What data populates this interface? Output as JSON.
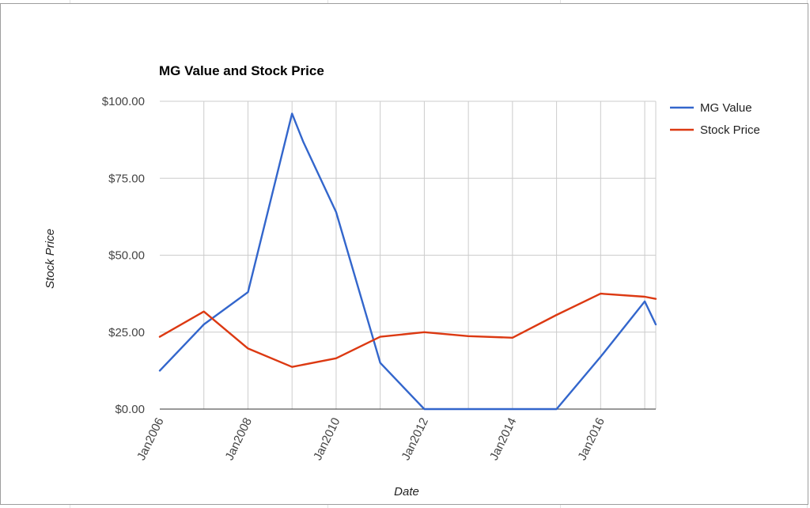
{
  "chart_data": {
    "type": "line",
    "title": "MG Value and Stock Price",
    "xlabel": "Date",
    "ylabel": "Stock Price",
    "x_axis": {
      "type": "date",
      "range": [
        "2006-01",
        "2017-04"
      ],
      "tick_labels": [
        "Jan2006",
        "Jan2008",
        "Jan2010",
        "Jan2012",
        "Jan2014",
        "Jan2016"
      ]
    },
    "y_axis": {
      "range": [
        0,
        100
      ],
      "tick_values": [
        0,
        25,
        50,
        75,
        100
      ],
      "tick_labels": [
        "$0.00",
        "$25.00",
        "$50.00",
        "$75.00",
        "$100.00"
      ]
    },
    "grid": true,
    "legend_position": "right",
    "series": [
      {
        "name": "MG Value",
        "color": "#3366cc",
        "points": [
          {
            "x": "2006-01",
            "y": 12.5
          },
          {
            "x": "2007-01",
            "y": 27.5
          },
          {
            "x": "2008-01",
            "y": 38.0
          },
          {
            "x": "2009-01",
            "y": 96.0
          },
          {
            "x": "2009-04",
            "y": 87.0
          },
          {
            "x": "2010-01",
            "y": 64.0
          },
          {
            "x": "2011-01",
            "y": 15.0
          },
          {
            "x": "2012-01",
            "y": 0.0
          },
          {
            "x": "2013-01",
            "y": 0.0
          },
          {
            "x": "2014-01",
            "y": 0.0
          },
          {
            "x": "2015-01",
            "y": 0.0
          },
          {
            "x": "2016-01",
            "y": 17.0
          },
          {
            "x": "2017-01",
            "y": 35.0
          },
          {
            "x": "2017-04",
            "y": 27.5
          }
        ]
      },
      {
        "name": "Stock Price",
        "color": "#dc3912",
        "points": [
          {
            "x": "2006-01",
            "y": 23.5
          },
          {
            "x": "2007-01",
            "y": 31.7
          },
          {
            "x": "2008-01",
            "y": 19.7
          },
          {
            "x": "2009-01",
            "y": 13.7
          },
          {
            "x": "2010-01",
            "y": 16.5
          },
          {
            "x": "2011-01",
            "y": 23.5
          },
          {
            "x": "2012-01",
            "y": 25.0
          },
          {
            "x": "2013-01",
            "y": 23.7
          },
          {
            "x": "2014-01",
            "y": 23.2
          },
          {
            "x": "2015-01",
            "y": 30.6
          },
          {
            "x": "2016-01",
            "y": 37.5
          },
          {
            "x": "2017-01",
            "y": 36.5
          },
          {
            "x": "2017-04",
            "y": 35.8
          }
        ]
      }
    ]
  }
}
